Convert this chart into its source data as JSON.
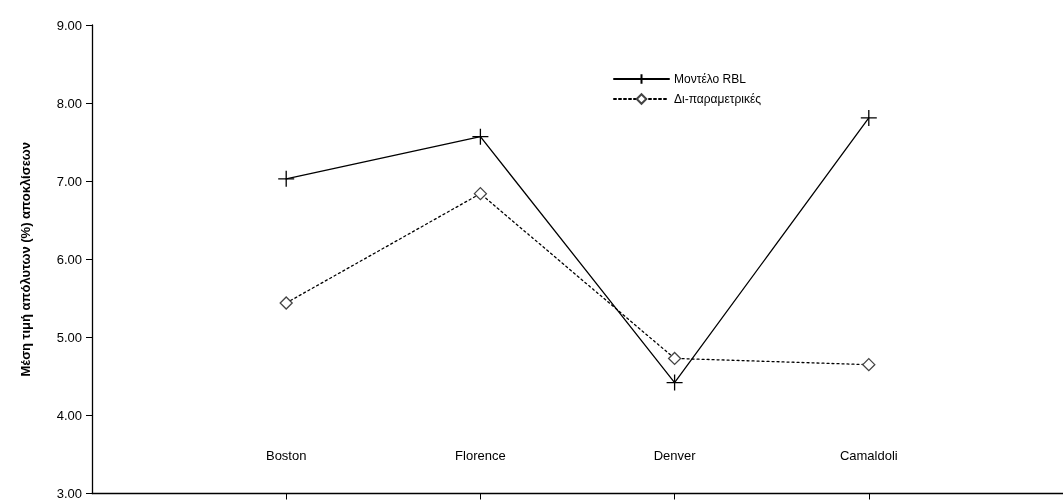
{
  "chart_data": {
    "type": "line",
    "ylabel": "Μέση τιμή απόλυτων (%) αποκλίσεων",
    "categories": [
      "Boston",
      "Florence",
      "Denver",
      "Camaldoli"
    ],
    "series": [
      {
        "name": "Μοντέλο RBL",
        "color": "#000000",
        "values": [
          7.03,
          7.57,
          4.42,
          7.81
        ],
        "marker": "cross",
        "line_style": "solid"
      },
      {
        "name": "Δι-παραμετρικές",
        "color": "#000000",
        "values": [
          5.44,
          6.84,
          4.73,
          4.65
        ],
        "marker": "diamond",
        "line_style": "dotted"
      }
    ],
    "ylim": [
      3,
      9
    ],
    "yticks": [
      {
        "value": 3,
        "label": "3.00"
      },
      {
        "value": 4,
        "label": "4.00"
      },
      {
        "value": 5,
        "label": "5.00"
      },
      {
        "value": 6,
        "label": "6.00"
      },
      {
        "value": 7,
        "label": "7.00"
      },
      {
        "value": 8,
        "label": "8.00"
      },
      {
        "value": 9,
        "label": "9.00"
      }
    ],
    "grid": false,
    "legend": "top right"
  }
}
